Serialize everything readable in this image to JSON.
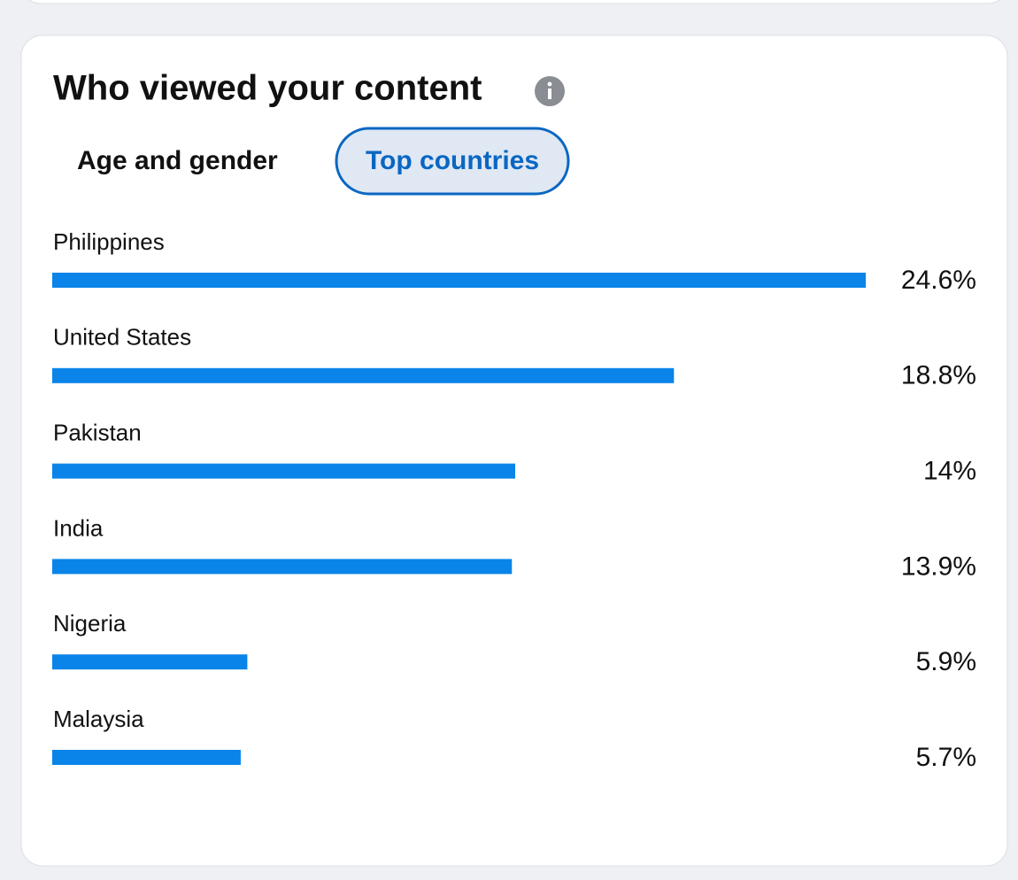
{
  "header": {
    "title": "Who viewed your content"
  },
  "tabs": [
    "Age and gender",
    "Top countries"
  ],
  "chart_data": {
    "type": "bar",
    "orientation": "horizontal",
    "categories": [
      "Philippines",
      "United States",
      "Pakistan",
      "India",
      "Nigeria",
      "Malaysia"
    ],
    "values": [
      24.6,
      18.8,
      14,
      13.9,
      5.9,
      5.7
    ],
    "value_labels": [
      "24.6%",
      "18.8%",
      "14%",
      "13.9%",
      "5.9%",
      "5.7%"
    ],
    "color": "#0a84e8"
  }
}
